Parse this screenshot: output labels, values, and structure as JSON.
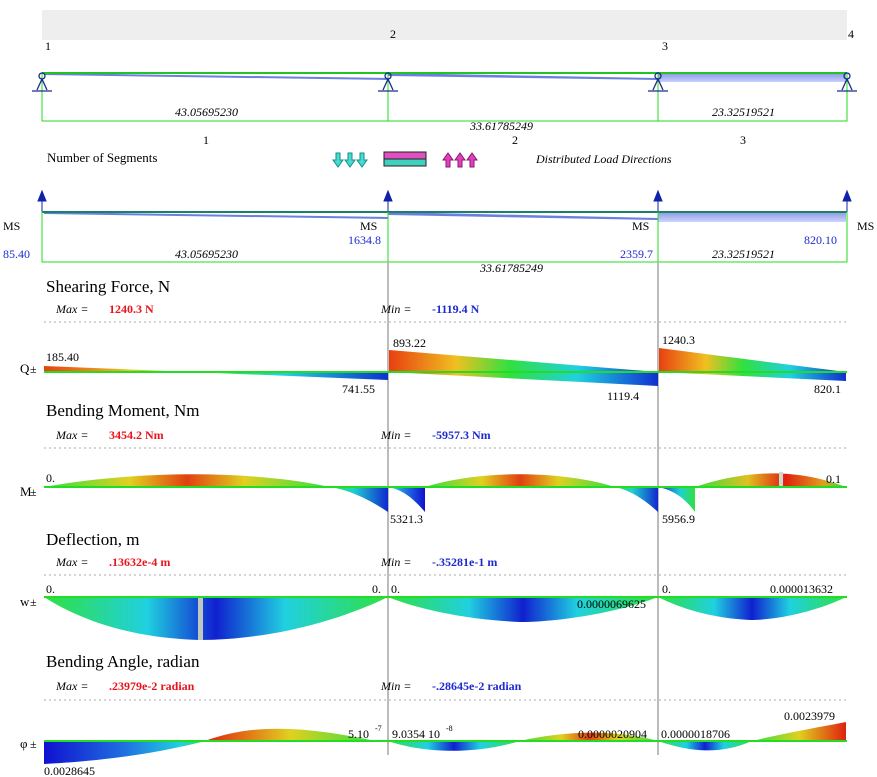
{
  "beam": {
    "node_numbers": [
      "1",
      "2",
      "3",
      "4"
    ],
    "span_lengths": [
      "43.05695230",
      "33.61785249",
      "23.32519521"
    ],
    "segment_numbers": [
      "1",
      "2",
      "3"
    ],
    "number_of_segments_label": "Number of Segments",
    "distributed_load_directions_label": "Distributed Load Directions",
    "support_labels": [
      "MS",
      "MS",
      "MS",
      "MS"
    ],
    "support_reactions": [
      "85.40",
      "1634.8",
      "2359.7",
      "820.10"
    ]
  },
  "shear": {
    "title": "Shearing Force, N",
    "axis_symbol": "Q",
    "max_label": "Max =",
    "max_value": "1240.3 N",
    "min_label": "Min =",
    "min_value": "-1119.4 N",
    "labels": [
      "185.40",
      "741.55",
      "893.22",
      "1119.4",
      "1240.3",
      "820.1"
    ]
  },
  "moment": {
    "title": "Bending Moment, Nm",
    "axis_symbol": "M",
    "max_label": "Max =",
    "max_value": "3454.2 Nm",
    "min_label": "Min =",
    "min_value": "-5957.3 Nm",
    "labels": [
      "0.",
      "5321.3",
      "5956.9",
      "0.1"
    ]
  },
  "deflection": {
    "title": "Deflection, m",
    "axis_symbol": "w",
    "max_label": "Max =",
    "max_value": ".13632e-4 m",
    "min_label": "Min =",
    "min_value": "-.35281e-1 m",
    "labels": [
      "0.",
      "0.",
      "0.",
      "0.0000069625",
      "0.",
      "0.000013632"
    ]
  },
  "angle": {
    "title": "Bending Angle, radian",
    "axis_symbol": "φ",
    "max_label": "Max =",
    "max_value": ".23979e-2 radian",
    "min_label": "Min =",
    "min_value": "-.28645e-2 radian",
    "labels": [
      "0.0028645",
      "5.10",
      "-7",
      "9.0354 10",
      "-8",
      "0.0000020904",
      "0.0000018706",
      "0.0023979"
    ]
  },
  "colors": {
    "beam_line": "#22dd22",
    "load": "#3355cc",
    "max_red": "#e8141c",
    "min_blue": "#1c2ad0",
    "support": "#1122aa"
  }
}
